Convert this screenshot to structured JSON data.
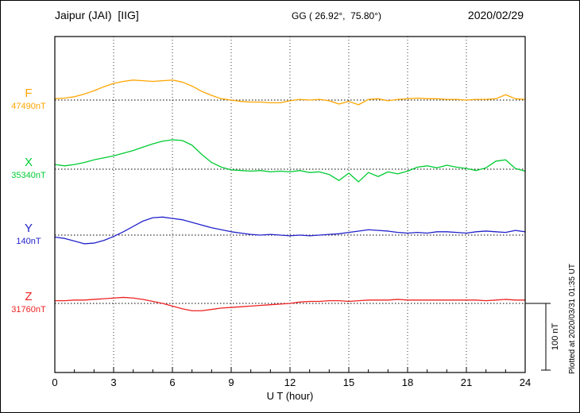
{
  "header": {
    "station": "Jaipur (JAI)  [IIG]",
    "coords": "GG ( 26.92°,  75.80°)",
    "date": "2020/02/29"
  },
  "scalebar": {
    "label": "100 nT",
    "nT": 100
  },
  "credit": "Plotted at 2020/03/31 01:35 UT",
  "chart_data": {
    "type": "line",
    "title": "Jaipur (JAI) [IIG] magnetogram 2020/02/29",
    "xlabel": "U T (hour)",
    "ylabel": "",
    "xlim": [
      0,
      24
    ],
    "xticks": [
      0,
      3,
      6,
      9,
      12,
      15,
      18,
      21,
      24
    ],
    "grid": "dotted vertical lines every 3 h; dotted horizontal baseline per component",
    "legend_position": "left margin component labels",
    "scale_bar_nT": 100,
    "x_hours": [
      0,
      0.5,
      1,
      1.5,
      2,
      2.5,
      3,
      3.5,
      4,
      4.5,
      5,
      5.5,
      6,
      6.5,
      7,
      7.5,
      8,
      8.5,
      9,
      9.5,
      10,
      10.5,
      11,
      11.5,
      12,
      12.5,
      13,
      13.5,
      14,
      14.5,
      15,
      15.5,
      16,
      16.5,
      17,
      17.5,
      18,
      18.5,
      19,
      19.5,
      20,
      20.5,
      21,
      21.5,
      22,
      22.5,
      23,
      23.5,
      24
    ],
    "series": [
      {
        "name": "F",
        "baseline_label": "47490nT",
        "baseline_nT": 47490,
        "color": "#FFA500",
        "deviations_nT": [
          2,
          3,
          5,
          9,
          14,
          20,
          25,
          28,
          30,
          29,
          28,
          29,
          30,
          27,
          21,
          13,
          7,
          2,
          0,
          -2,
          -3,
          -3,
          -4,
          -4,
          -1,
          1,
          0,
          1,
          -1,
          -6,
          -2,
          -7,
          1,
          2,
          -1,
          1,
          2,
          3,
          2,
          2,
          1,
          1,
          0,
          1,
          1,
          2,
          8,
          2,
          1
        ]
      },
      {
        "name": "X",
        "baseline_label": "35340nT",
        "baseline_nT": 35340,
        "color": "#00CC33",
        "deviations_nT": [
          7,
          5,
          7,
          10,
          14,
          17,
          20,
          24,
          28,
          33,
          38,
          42,
          44,
          43,
          36,
          22,
          10,
          3,
          -1,
          -2,
          -3,
          -2,
          -4,
          -3,
          -4,
          -2,
          -5,
          -4,
          -8,
          -17,
          -6,
          -19,
          -5,
          -11,
          -4,
          -7,
          -3,
          3,
          5,
          2,
          6,
          3,
          1,
          -2,
          2,
          12,
          14,
          1,
          -3
        ]
      },
      {
        "name": "Y",
        "baseline_label": "140nT",
        "baseline_nT": 140,
        "color": "#2222CC",
        "deviations_nT": [
          -3,
          -5,
          -9,
          -13,
          -12,
          -8,
          -2,
          5,
          13,
          21,
          26,
          27,
          25,
          23,
          19,
          15,
          11,
          8,
          5,
          3,
          1,
          0,
          1,
          0,
          -1,
          0,
          -1,
          0,
          1,
          2,
          4,
          6,
          8,
          7,
          6,
          4,
          3,
          4,
          3,
          5,
          5,
          4,
          3,
          5,
          6,
          5,
          4,
          7,
          5
        ]
      },
      {
        "name": "Z",
        "baseline_label": "31760nT",
        "baseline_nT": 31760,
        "color": "#EE2222",
        "deviations_nT": [
          4,
          4,
          5,
          5,
          6,
          7,
          8,
          9,
          8,
          6,
          3,
          0,
          -4,
          -8,
          -11,
          -11,
          -9,
          -7,
          -6,
          -5,
          -4,
          -3,
          -2,
          -1,
          0,
          2,
          3,
          3,
          4,
          4,
          3,
          4,
          5,
          5,
          5,
          6,
          5,
          5,
          5,
          5,
          5,
          5,
          5,
          5,
          4,
          5,
          6,
          5,
          5
        ]
      }
    ]
  }
}
